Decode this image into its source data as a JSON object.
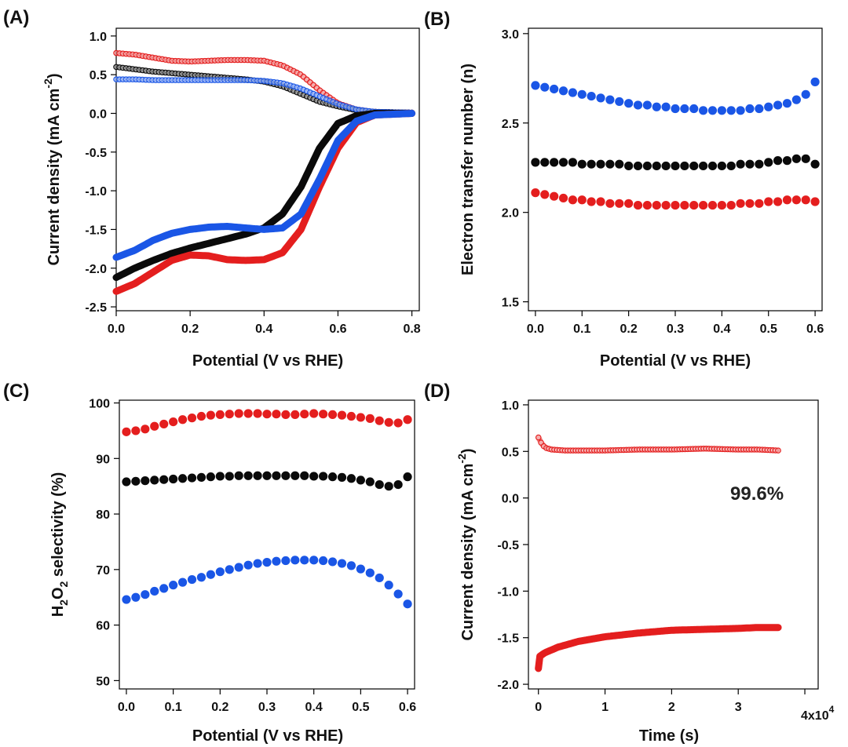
{
  "figure": {
    "colors": {
      "red": "#e41e1e",
      "black": "#0a0a0a",
      "blue": "#1a56e6"
    }
  },
  "chart_data": [
    {
      "id": "A",
      "panel_label": "(A)",
      "type": "line",
      "xlabel": "Potential (V vs RHE)",
      "ylabel": "Current density (mA cm",
      "ylabel_sup": "-2",
      "ylabel_end": ")",
      "xlim": [
        0.0,
        0.82
      ],
      "ylim": [
        -2.55,
        1.1
      ],
      "xticks": [
        0.0,
        0.2,
        0.4,
        0.6,
        0.8
      ],
      "xtick_labels": [
        "0.0",
        "0.2",
        "0.4",
        "0.6",
        "0.8"
      ],
      "yticks": [
        1.0,
        0.5,
        0.0,
        -0.5,
        -1.0,
        -1.5,
        -2.0,
        -2.5
      ],
      "ytick_labels": [
        "1.0",
        "0.5",
        "0.0",
        "-0.5",
        "-1.0",
        "-1.5",
        "-2.0",
        "-2.5"
      ],
      "series": [
        {
          "name": "red ring current",
          "color": "#e41e1e",
          "style": "open-markers",
          "points": [
            [
              0.0,
              0.78
            ],
            [
              0.05,
              0.76
            ],
            [
              0.1,
              0.72
            ],
            [
              0.15,
              0.68
            ],
            [
              0.2,
              0.67
            ],
            [
              0.25,
              0.68
            ],
            [
              0.3,
              0.69
            ],
            [
              0.35,
              0.69
            ],
            [
              0.4,
              0.68
            ],
            [
              0.45,
              0.62
            ],
            [
              0.5,
              0.5
            ],
            [
              0.55,
              0.3
            ],
            [
              0.6,
              0.13
            ],
            [
              0.65,
              0.05
            ],
            [
              0.7,
              0.02
            ],
            [
              0.8,
              0.01
            ]
          ]
        },
        {
          "name": "black ring current",
          "color": "#0a0a0a",
          "style": "open-markers",
          "points": [
            [
              0.0,
              0.6
            ],
            [
              0.05,
              0.57
            ],
            [
              0.1,
              0.54
            ],
            [
              0.15,
              0.52
            ],
            [
              0.2,
              0.5
            ],
            [
              0.25,
              0.48
            ],
            [
              0.3,
              0.46
            ],
            [
              0.35,
              0.44
            ],
            [
              0.4,
              0.41
            ],
            [
              0.45,
              0.35
            ],
            [
              0.5,
              0.25
            ],
            [
              0.55,
              0.15
            ],
            [
              0.6,
              0.09
            ],
            [
              0.65,
              0.04
            ],
            [
              0.7,
              0.02
            ],
            [
              0.8,
              0.01
            ]
          ]
        },
        {
          "name": "blue ring current",
          "color": "#1a56e6",
          "style": "open-markers",
          "points": [
            [
              0.0,
              0.44
            ],
            [
              0.05,
              0.44
            ],
            [
              0.1,
              0.43
            ],
            [
              0.15,
              0.43
            ],
            [
              0.2,
              0.43
            ],
            [
              0.25,
              0.43
            ],
            [
              0.3,
              0.43
            ],
            [
              0.35,
              0.43
            ],
            [
              0.4,
              0.42
            ],
            [
              0.45,
              0.39
            ],
            [
              0.5,
              0.32
            ],
            [
              0.55,
              0.22
            ],
            [
              0.6,
              0.12
            ],
            [
              0.65,
              0.05
            ],
            [
              0.7,
              0.02
            ],
            [
              0.8,
              0.01
            ]
          ]
        },
        {
          "name": "black disk current",
          "color": "#0a0a0a",
          "style": "thick-line",
          "points": [
            [
              0.0,
              -2.12
            ],
            [
              0.05,
              -2.0
            ],
            [
              0.1,
              -1.9
            ],
            [
              0.15,
              -1.81
            ],
            [
              0.2,
              -1.74
            ],
            [
              0.25,
              -1.68
            ],
            [
              0.3,
              -1.62
            ],
            [
              0.35,
              -1.56
            ],
            [
              0.4,
              -1.48
            ],
            [
              0.45,
              -1.3
            ],
            [
              0.5,
              -0.95
            ],
            [
              0.55,
              -0.45
            ],
            [
              0.6,
              -0.13
            ],
            [
              0.65,
              -0.03
            ],
            [
              0.7,
              0.0
            ],
            [
              0.8,
              0.0
            ]
          ]
        },
        {
          "name": "red disk current",
          "color": "#e41e1e",
          "style": "thick-line",
          "points": [
            [
              0.0,
              -2.3
            ],
            [
              0.05,
              -2.2
            ],
            [
              0.1,
              -2.05
            ],
            [
              0.15,
              -1.9
            ],
            [
              0.2,
              -1.83
            ],
            [
              0.25,
              -1.84
            ],
            [
              0.3,
              -1.89
            ],
            [
              0.35,
              -1.9
            ],
            [
              0.4,
              -1.89
            ],
            [
              0.45,
              -1.8
            ],
            [
              0.5,
              -1.5
            ],
            [
              0.55,
              -0.95
            ],
            [
              0.6,
              -0.45
            ],
            [
              0.65,
              -0.12
            ],
            [
              0.7,
              -0.02
            ],
            [
              0.8,
              0.0
            ]
          ]
        },
        {
          "name": "blue disk current",
          "color": "#1a56e6",
          "style": "thick-line",
          "points": [
            [
              0.0,
              -1.86
            ],
            [
              0.05,
              -1.77
            ],
            [
              0.1,
              -1.64
            ],
            [
              0.15,
              -1.55
            ],
            [
              0.2,
              -1.5
            ],
            [
              0.25,
              -1.47
            ],
            [
              0.3,
              -1.46
            ],
            [
              0.35,
              -1.48
            ],
            [
              0.4,
              -1.5
            ],
            [
              0.45,
              -1.48
            ],
            [
              0.5,
              -1.3
            ],
            [
              0.55,
              -0.85
            ],
            [
              0.6,
              -0.35
            ],
            [
              0.65,
              -0.1
            ],
            [
              0.7,
              -0.02
            ],
            [
              0.8,
              0.0
            ]
          ]
        }
      ]
    },
    {
      "id": "B",
      "panel_label": "(B)",
      "type": "scatter",
      "xlabel": "Potential (V vs RHE)",
      "ylabel": "Electron transfer number (n)",
      "xlim": [
        -0.015,
        0.615
      ],
      "ylim": [
        1.45,
        3.03
      ],
      "xticks": [
        0.0,
        0.1,
        0.2,
        0.3,
        0.4,
        0.5,
        0.6
      ],
      "xtick_labels": [
        "0.0",
        "0.1",
        "0.2",
        "0.3",
        "0.4",
        "0.5",
        "0.6"
      ],
      "yticks": [
        3.0,
        2.5,
        2.0,
        1.5
      ],
      "ytick_labels": [
        "3.0",
        "2.5",
        "2.0",
        "1.5"
      ],
      "series": [
        {
          "name": "blue",
          "color": "#1a56e6",
          "style": "dots",
          "x_start": 0.0,
          "x_step": 0.02,
          "values": [
            2.71,
            2.7,
            2.69,
            2.68,
            2.67,
            2.66,
            2.65,
            2.64,
            2.63,
            2.62,
            2.61,
            2.6,
            2.6,
            2.59,
            2.59,
            2.58,
            2.58,
            2.58,
            2.57,
            2.57,
            2.57,
            2.57,
            2.57,
            2.58,
            2.58,
            2.59,
            2.6,
            2.61,
            2.63,
            2.66,
            2.73
          ]
        },
        {
          "name": "black",
          "color": "#0a0a0a",
          "style": "dots",
          "x_start": 0.0,
          "x_step": 0.02,
          "values": [
            2.28,
            2.28,
            2.28,
            2.28,
            2.28,
            2.27,
            2.27,
            2.27,
            2.27,
            2.27,
            2.26,
            2.26,
            2.26,
            2.26,
            2.26,
            2.26,
            2.26,
            2.26,
            2.26,
            2.26,
            2.26,
            2.26,
            2.27,
            2.27,
            2.27,
            2.28,
            2.29,
            2.29,
            2.3,
            2.3,
            2.27
          ]
        },
        {
          "name": "red",
          "color": "#e41e1e",
          "style": "dots",
          "x_start": 0.0,
          "x_step": 0.02,
          "values": [
            2.11,
            2.1,
            2.09,
            2.08,
            2.07,
            2.07,
            2.06,
            2.06,
            2.05,
            2.05,
            2.05,
            2.04,
            2.04,
            2.04,
            2.04,
            2.04,
            2.04,
            2.04,
            2.04,
            2.04,
            2.04,
            2.04,
            2.05,
            2.05,
            2.05,
            2.06,
            2.06,
            2.07,
            2.07,
            2.07,
            2.06
          ]
        }
      ]
    },
    {
      "id": "C",
      "panel_label": "(C)",
      "type": "scatter",
      "xlabel": "Potential (V vs RHE)",
      "ylabel_parts": [
        "H",
        "2",
        "O",
        "2",
        " selectivity (%)"
      ],
      "xlim": [
        -0.015,
        0.615
      ],
      "ylim": [
        48.5,
        100.5
      ],
      "xticks": [
        0.0,
        0.1,
        0.2,
        0.3,
        0.4,
        0.5,
        0.6
      ],
      "xtick_labels": [
        "0.0",
        "0.1",
        "0.2",
        "0.3",
        "0.4",
        "0.5",
        "0.6"
      ],
      "yticks": [
        100,
        90,
        80,
        70,
        60,
        50
      ],
      "ytick_labels": [
        "100",
        "90",
        "80",
        "70",
        "60",
        "50"
      ],
      "series": [
        {
          "name": "red",
          "color": "#e41e1e",
          "style": "dots",
          "x_start": 0.0,
          "x_step": 0.02,
          "values": [
            94.8,
            95.0,
            95.3,
            95.8,
            96.2,
            96.6,
            97.0,
            97.3,
            97.6,
            97.8,
            97.9,
            98.0,
            98.1,
            98.1,
            98.1,
            98.0,
            98.0,
            97.9,
            97.9,
            98.0,
            98.1,
            98.0,
            97.9,
            97.8,
            97.6,
            97.4,
            97.2,
            96.8,
            96.5,
            96.4,
            97.0
          ]
        },
        {
          "name": "black",
          "color": "#0a0a0a",
          "style": "dots",
          "x_start": 0.0,
          "x_step": 0.02,
          "values": [
            85.8,
            85.9,
            86.0,
            86.1,
            86.2,
            86.3,
            86.4,
            86.5,
            86.6,
            86.7,
            86.8,
            86.8,
            86.9,
            86.9,
            86.9,
            86.9,
            86.9,
            86.9,
            86.9,
            86.9,
            86.8,
            86.8,
            86.7,
            86.6,
            86.4,
            86.1,
            85.8,
            85.3,
            85.0,
            85.3,
            86.7
          ]
        },
        {
          "name": "blue",
          "color": "#1a56e6",
          "style": "dots",
          "x_start": 0.0,
          "x_step": 0.02,
          "values": [
            64.6,
            65.0,
            65.5,
            66.1,
            66.6,
            67.2,
            67.7,
            68.2,
            68.6,
            69.1,
            69.6,
            70.0,
            70.4,
            70.8,
            71.1,
            71.3,
            71.5,
            71.6,
            71.7,
            71.7,
            71.7,
            71.6,
            71.4,
            71.1,
            70.7,
            70.1,
            69.4,
            68.5,
            67.2,
            65.6,
            63.8
          ]
        }
      ]
    },
    {
      "id": "D",
      "panel_label": "(D)",
      "type": "line",
      "xlabel": "Time (s)",
      "ylabel": "Current density (mA cm",
      "ylabel_sup": "-2",
      "ylabel_end": ")",
      "x_multiplier": "4x10",
      "x_multiplier_exp": "4",
      "annotation": "99.6%",
      "xlim": [
        -0.15,
        4.2
      ],
      "ylim": [
        -2.05,
        1.05
      ],
      "xticks": [
        0,
        1,
        2,
        3,
        4
      ],
      "xtick_labels": [
        "0",
        "1",
        "2",
        "3",
        ""
      ],
      "yticks": [
        1.0,
        0.5,
        0.0,
        -0.5,
        -1.0,
        -1.5,
        -2.0
      ],
      "ytick_labels": [
        "1.0",
        "0.5",
        "0.0",
        "-0.5",
        "-1.0",
        "-1.5",
        "-2.0"
      ],
      "series": [
        {
          "name": "ring current",
          "color": "#e41e1e",
          "style": "open-markers",
          "points": [
            [
              0.0,
              0.65
            ],
            [
              0.05,
              0.58
            ],
            [
              0.1,
              0.54
            ],
            [
              0.2,
              0.52
            ],
            [
              0.4,
              0.51
            ],
            [
              0.7,
              0.51
            ],
            [
              1.0,
              0.51
            ],
            [
              1.5,
              0.52
            ],
            [
              2.0,
              0.52
            ],
            [
              2.5,
              0.53
            ],
            [
              3.0,
              0.52
            ],
            [
              3.3,
              0.52
            ],
            [
              3.6,
              0.51
            ]
          ]
        },
        {
          "name": "disk current",
          "color": "#e41e1e",
          "style": "thick-line",
          "points": [
            [
              0.0,
              -1.83
            ],
            [
              0.02,
              -1.7
            ],
            [
              0.1,
              -1.66
            ],
            [
              0.3,
              -1.6
            ],
            [
              0.6,
              -1.54
            ],
            [
              1.0,
              -1.49
            ],
            [
              1.5,
              -1.45
            ],
            [
              2.0,
              -1.42
            ],
            [
              2.5,
              -1.41
            ],
            [
              3.0,
              -1.4
            ],
            [
              3.3,
              -1.39
            ],
            [
              3.6,
              -1.39
            ]
          ]
        }
      ]
    }
  ]
}
